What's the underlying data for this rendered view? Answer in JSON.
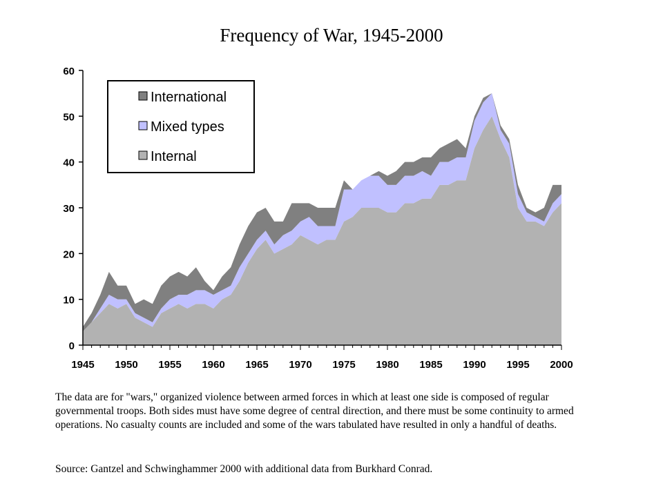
{
  "page": {
    "caption": "The data are for \"wars,\" organized violence between armed forces in which at least one side is composed of regular governmental troops.  Both sides must have some degree of central direction, and there must be some continuity to armed operations.  No casualty counts are included and some of the wars tabulated have resulted in only a handful of deaths.",
    "source": "Source: Gantzel and Schwinghammer 2000 with additional data from Burkhard Conrad."
  },
  "chart_data": {
    "type": "area",
    "stacked": true,
    "title": "Frequency of War, 1945-2000",
    "xlabel": "",
    "ylabel": "",
    "xlim": [
      1945,
      2000
    ],
    "ylim": [
      0,
      60
    ],
    "x_ticks": [
      1945,
      1950,
      1955,
      1960,
      1965,
      1970,
      1975,
      1980,
      1985,
      1990,
      1995,
      2000
    ],
    "y_ticks": [
      0,
      10,
      20,
      30,
      40,
      50,
      60
    ],
    "legend_position": "top-left",
    "legend_order": [
      "International",
      "Mixed types",
      "Internal"
    ],
    "colors": {
      "Internal": "#b2b2b2",
      "Mixed types": "#c0c0ff",
      "International": "#808080"
    },
    "x": [
      1945,
      1946,
      1947,
      1948,
      1949,
      1950,
      1951,
      1952,
      1953,
      1954,
      1955,
      1956,
      1957,
      1958,
      1959,
      1960,
      1961,
      1962,
      1963,
      1964,
      1965,
      1966,
      1967,
      1968,
      1969,
      1970,
      1971,
      1972,
      1973,
      1974,
      1975,
      1976,
      1977,
      1978,
      1979,
      1980,
      1981,
      1982,
      1983,
      1984,
      1985,
      1986,
      1987,
      1988,
      1989,
      1990,
      1991,
      1992,
      1993,
      1994,
      1995,
      1996,
      1997,
      1998,
      1999,
      2000
    ],
    "series": [
      {
        "name": "Internal",
        "values": [
          3,
          5,
          7,
          9,
          8,
          9,
          6,
          5,
          4,
          7,
          8,
          9,
          8,
          9,
          9,
          8,
          10,
          11,
          14,
          18,
          21,
          23,
          20,
          21,
          22,
          24,
          23,
          22,
          23,
          23,
          27,
          28,
          30,
          30,
          30,
          29,
          29,
          31,
          31,
          32,
          32,
          35,
          35,
          36,
          36,
          43,
          47,
          50,
          45,
          41,
          30,
          27,
          27,
          26,
          29,
          31
        ]
      },
      {
        "name": "Mixed types",
        "values": [
          0,
          0,
          1,
          2,
          2,
          1,
          1,
          1,
          1,
          1,
          2,
          2,
          3,
          3,
          3,
          3,
          2,
          2,
          3,
          2,
          2,
          2,
          2,
          3,
          3,
          3,
          5,
          4,
          3,
          3,
          7,
          6,
          6,
          7,
          7,
          6,
          6,
          6,
          6,
          6,
          5,
          5,
          5,
          5,
          5,
          6,
          6,
          5,
          2,
          3,
          3,
          2,
          1,
          1,
          2,
          2
        ]
      },
      {
        "name": "International",
        "values": [
          1,
          2,
          3,
          5,
          3,
          3,
          2,
          4,
          4,
          5,
          5,
          5,
          4,
          5,
          2,
          1,
          3,
          4,
          5,
          6,
          6,
          5,
          5,
          3,
          6,
          4,
          3,
          4,
          4,
          4,
          2,
          0,
          0,
          0,
          1,
          2,
          3,
          3,
          3,
          3,
          4,
          3,
          4,
          4,
          2,
          1,
          1,
          0,
          1,
          1,
          2,
          1,
          1,
          3,
          4,
          2
        ]
      }
    ]
  }
}
